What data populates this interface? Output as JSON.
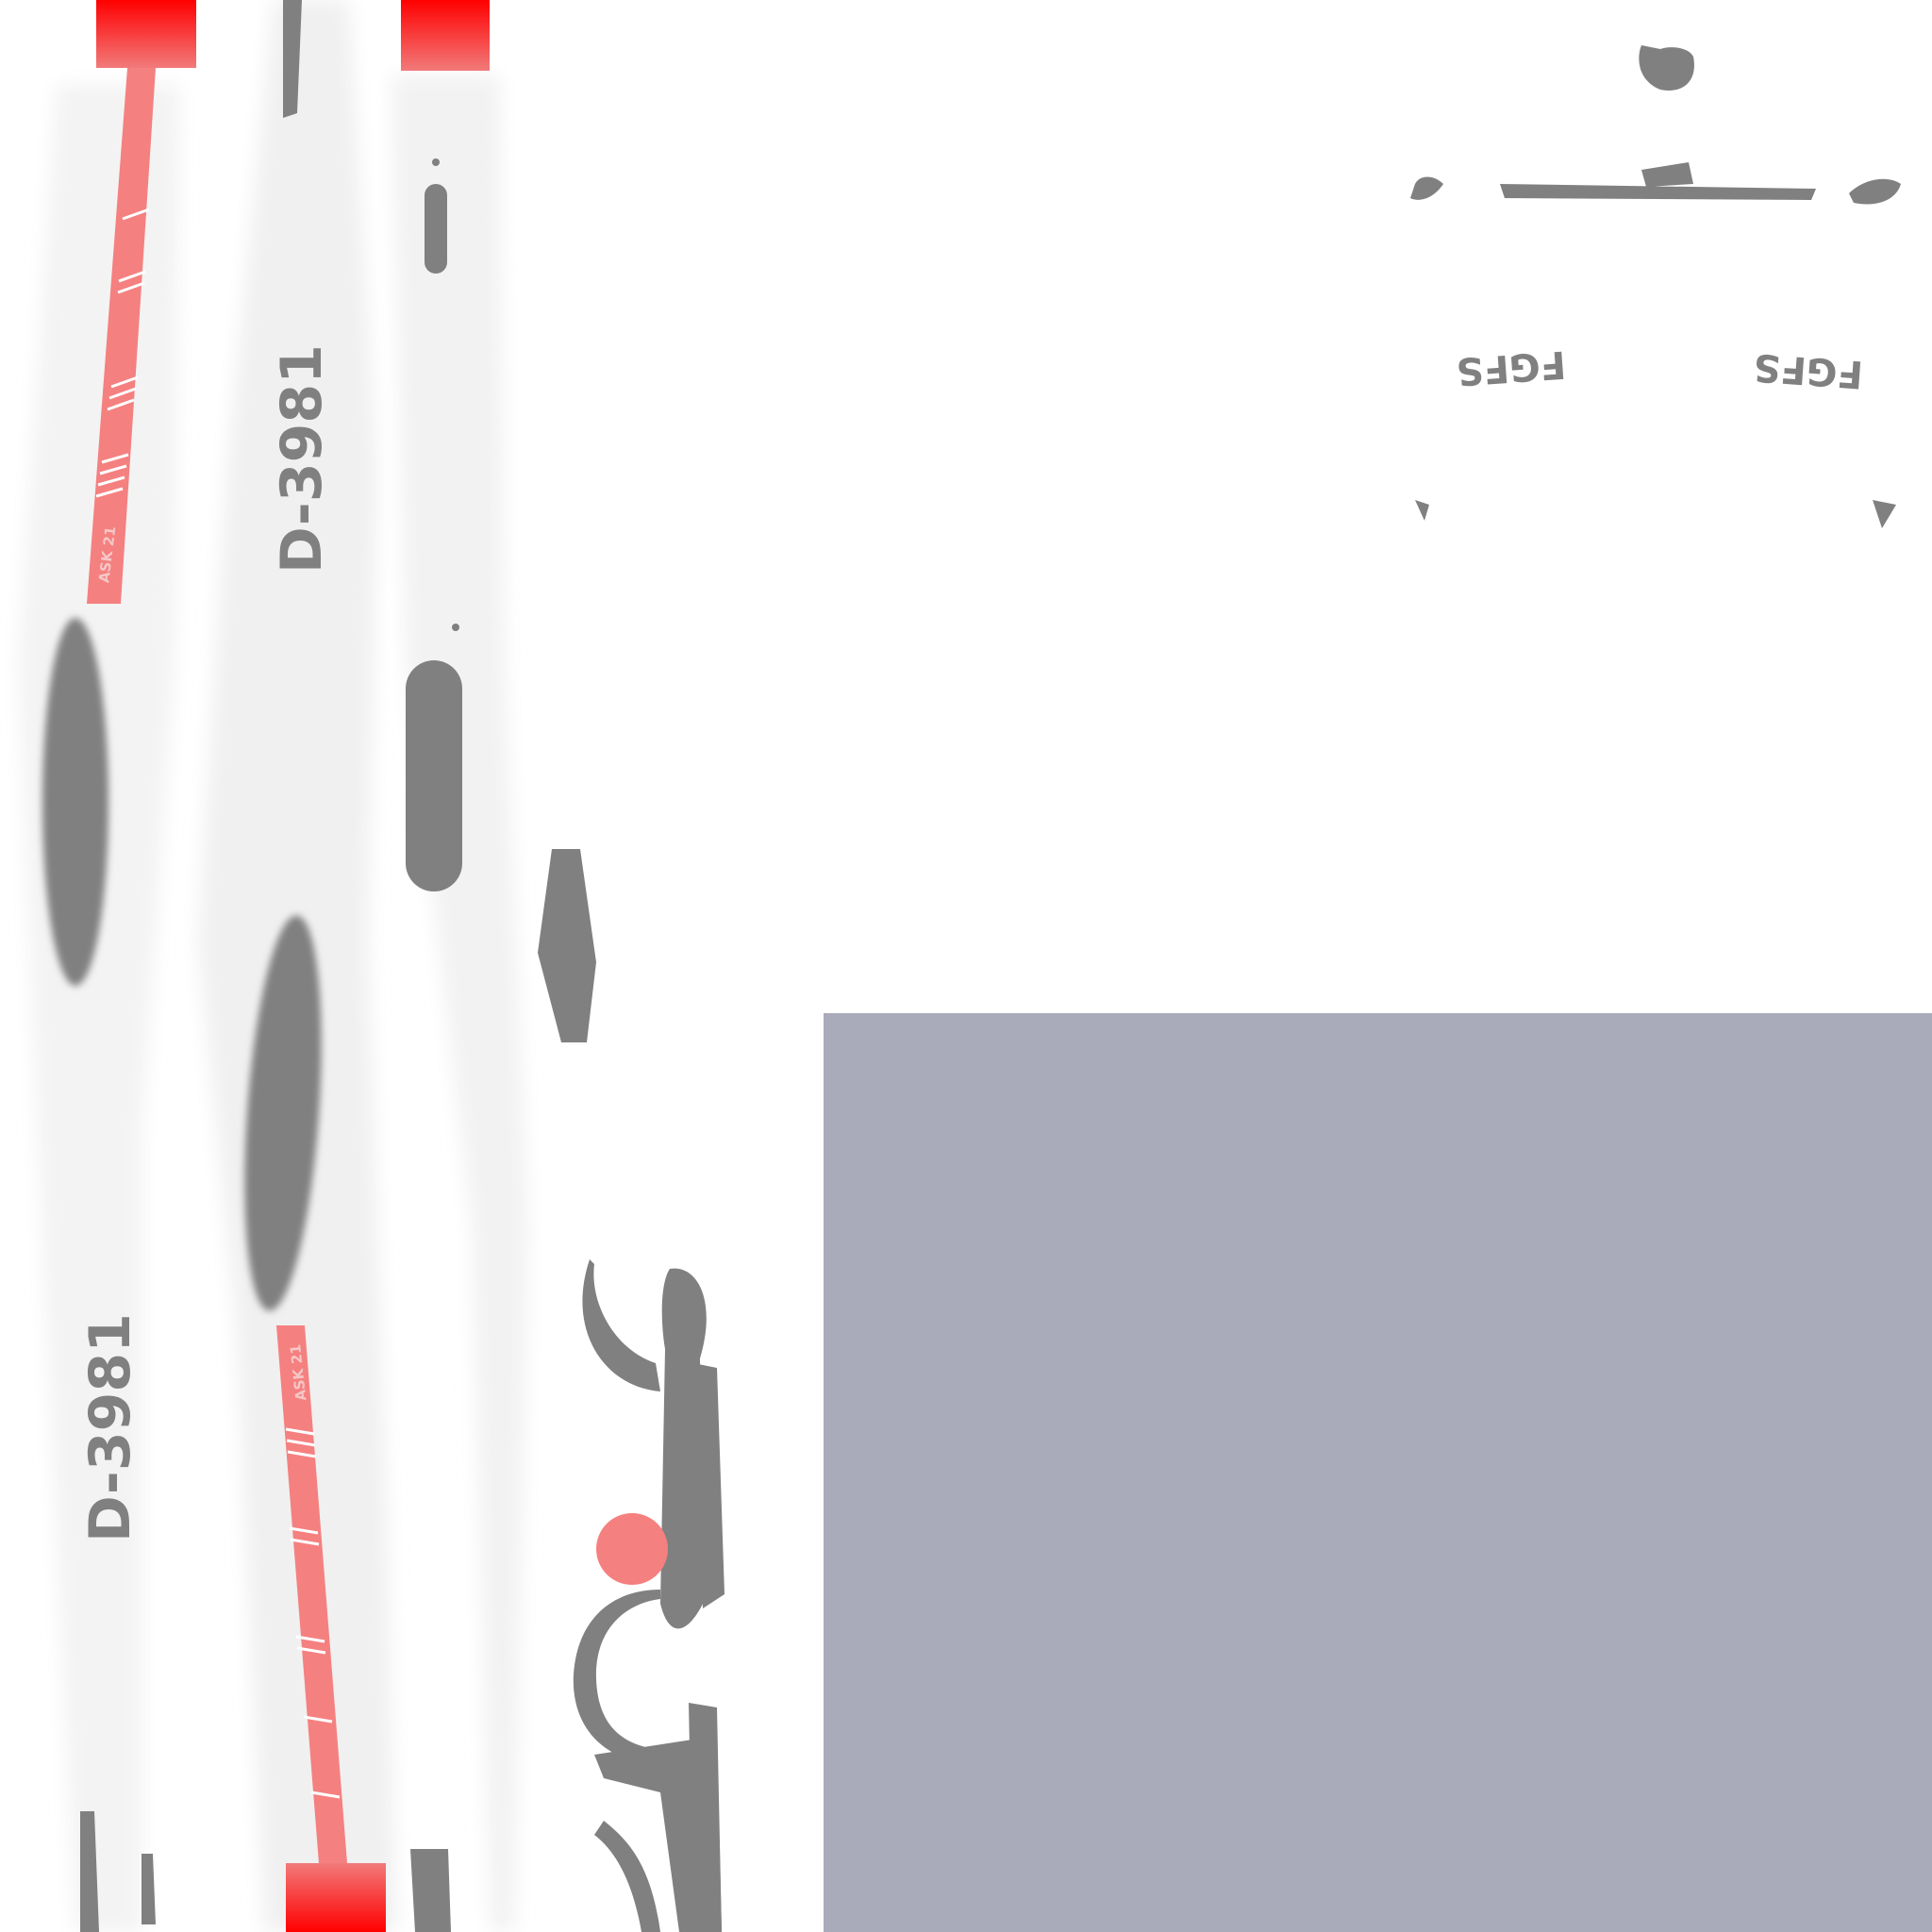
{
  "texture": {
    "colors": {
      "background": "#ffffff",
      "panel": "#a9abba",
      "stripe": "#f58080",
      "stripe_tip": "#ff0000",
      "marking": "#808080"
    }
  },
  "labels": {
    "registration_1": "D-3981",
    "registration_2": "D-3981",
    "model_1": "ASK 21",
    "model_2": "ASK 21",
    "code_1": "FGFS",
    "code_2": "FGFS"
  }
}
